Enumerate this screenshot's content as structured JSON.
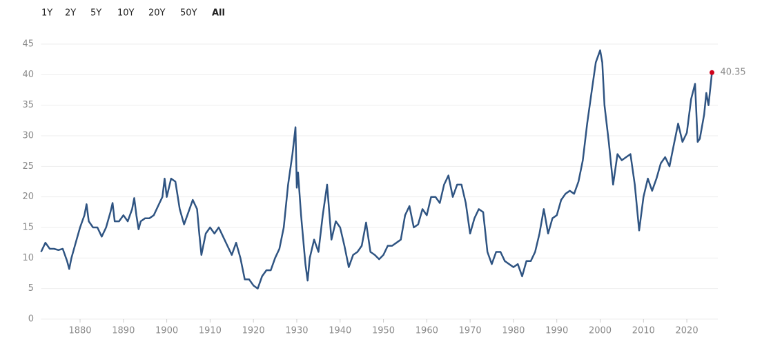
{
  "chart_data": {
    "type": "line",
    "range_buttons": [
      "1Y",
      "2Y",
      "5Y",
      "10Y",
      "20Y",
      "50Y",
      "All"
    ],
    "selected_range": "All",
    "series": [
      {
        "color": "#2f5482",
        "x": [
          1871,
          1872,
          1873,
          1874,
          1875,
          1876,
          1877,
          1877.5,
          1878,
          1879,
          1880,
          1881,
          1881.5,
          1882,
          1883,
          1884,
          1885,
          1886,
          1887,
          1887.5,
          1888,
          1889,
          1890,
          1891,
          1892,
          1892.5,
          1893,
          1893.5,
          1894,
          1895,
          1896,
          1897,
          1898,
          1899,
          1899.5,
          1900,
          1901,
          1902,
          1903,
          1904,
          1905,
          1906,
          1907,
          1907.5,
          1908,
          1909,
          1910,
          1911,
          1912,
          1913,
          1914,
          1915,
          1916,
          1917,
          1918,
          1919,
          1920,
          1921,
          1922,
          1923,
          1924,
          1925,
          1926,
          1927,
          1928,
          1929,
          1929.7,
          1930,
          1930.3,
          1931,
          1932,
          1932.5,
          1933,
          1934,
          1935,
          1936,
          1937,
          1938,
          1939,
          1940,
          1941,
          1942,
          1943,
          1944,
          1945,
          1946,
          1947,
          1948,
          1949,
          1950,
          1951,
          1952,
          1953,
          1954,
          1955,
          1956,
          1957,
          1958,
          1959,
          1960,
          1961,
          1962,
          1963,
          1964,
          1965,
          1966,
          1967,
          1968,
          1969,
          1970,
          1971,
          1972,
          1973,
          1974,
          1975,
          1976,
          1977,
          1978,
          1979,
          1980,
          1981,
          1982,
          1983,
          1984,
          1985,
          1986,
          1987,
          1988,
          1989,
          1990,
          1991,
          1992,
          1993,
          1994,
          1995,
          1996,
          1997,
          1998,
          1999,
          2000,
          2000.5,
          2001,
          2002,
          2003,
          2004,
          2005,
          2006,
          2007,
          2008,
          2009,
          2010,
          2011,
          2012,
          2013,
          2014,
          2015,
          2016,
          2017,
          2018,
          2019,
          2020,
          2021,
          2021.9,
          2022.5,
          2023,
          2024,
          2024.5,
          2025,
          2025.8
        ],
        "values": [
          11,
          12.5,
          11.5,
          11.5,
          11.3,
          11.5,
          9.5,
          8.2,
          10,
          12.5,
          15,
          17,
          18.8,
          16,
          15,
          15,
          13.5,
          15,
          17.5,
          19,
          16,
          16,
          17,
          16,
          18,
          19.8,
          17,
          14.7,
          16,
          16.5,
          16.5,
          17,
          18.5,
          20,
          23,
          20,
          23,
          22.5,
          18,
          15.5,
          17.5,
          19.5,
          18,
          14,
          10.5,
          14,
          15,
          14,
          15,
          13.5,
          12,
          10.5,
          12.5,
          10,
          6.5,
          6.5,
          5.5,
          5,
          7,
          8,
          8,
          10,
          11.5,
          15,
          22,
          27,
          31.4,
          21.5,
          24,
          17,
          9,
          6.3,
          10,
          13,
          11,
          17,
          22,
          13,
          16,
          15,
          12,
          8.5,
          10.5,
          11,
          12,
          15.8,
          11,
          10.5,
          9.8,
          10.5,
          12,
          12,
          12.5,
          13,
          17,
          18.5,
          15,
          15.5,
          18,
          17,
          20,
          20,
          19,
          22,
          23.5,
          20,
          22,
          22,
          19,
          14,
          16.5,
          18,
          17.5,
          11,
          9,
          11,
          11,
          9.5,
          9,
          8.5,
          9,
          7,
          9.5,
          9.5,
          11,
          14,
          18,
          14,
          16.5,
          17,
          19.5,
          20.5,
          21,
          20.5,
          22.5,
          26,
          32,
          37,
          42,
          44,
          42,
          35,
          29,
          22,
          27,
          26,
          26.5,
          27,
          22,
          14.5,
          20,
          23,
          21,
          23,
          25.5,
          26.5,
          25,
          28.5,
          32,
          29,
          30.5,
          36,
          38.5,
          29,
          29.5,
          33.5,
          37,
          35,
          40.35
        ]
      }
    ],
    "last_point_color": "#d0021b",
    "xlim": [
      1871,
      2027
    ],
    "xticks": [
      1880,
      1890,
      1900,
      1910,
      1920,
      1930,
      1940,
      1950,
      1960,
      1970,
      1980,
      1990,
      2000,
      2010,
      2020
    ],
    "ylim": [
      0,
      45
    ],
    "yticks": [
      0,
      5,
      10,
      15,
      20,
      25,
      30,
      35,
      40,
      45
    ],
    "grid": true
  }
}
